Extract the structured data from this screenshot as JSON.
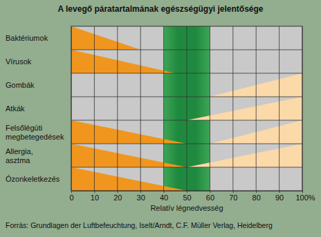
{
  "chart_data": {
    "type": "wedge",
    "title": "A levegő páratartalmának egészségügyi jelentősége",
    "x_label": "Relatív légnedvesség",
    "annotations": [
      "Forrás: Grundlagen der Luftbefeuchtung, Iselt/Arndt, C.F. Müller Verlag, Heidelberg"
    ],
    "categories": [
      "Baktériumok",
      "Vírusok",
      "Gombák",
      "Atkák",
      "Felsőlégúti megbetegedések",
      "Allergia, asztma",
      "Ózonkeletkezés"
    ],
    "series": [
      {
        "color": "#f0961e",
        "values": [
          30,
          45,
          null,
          null,
          50,
          50,
          50
        ]
      },
      {
        "color": "#fcd9a8",
        "values": [
          null,
          null,
          60,
          50,
          60,
          50,
          null
        ]
      }
    ],
    "optimum_band": [
      40,
      60
    ],
    "xlim": [
      0,
      100
    ],
    "xticks": [
      0,
      10,
      20,
      30,
      40,
      50,
      60,
      70,
      80,
      90,
      {
        "value": 100,
        "label": "100%"
      }
    ],
    "grid": true
  }
}
